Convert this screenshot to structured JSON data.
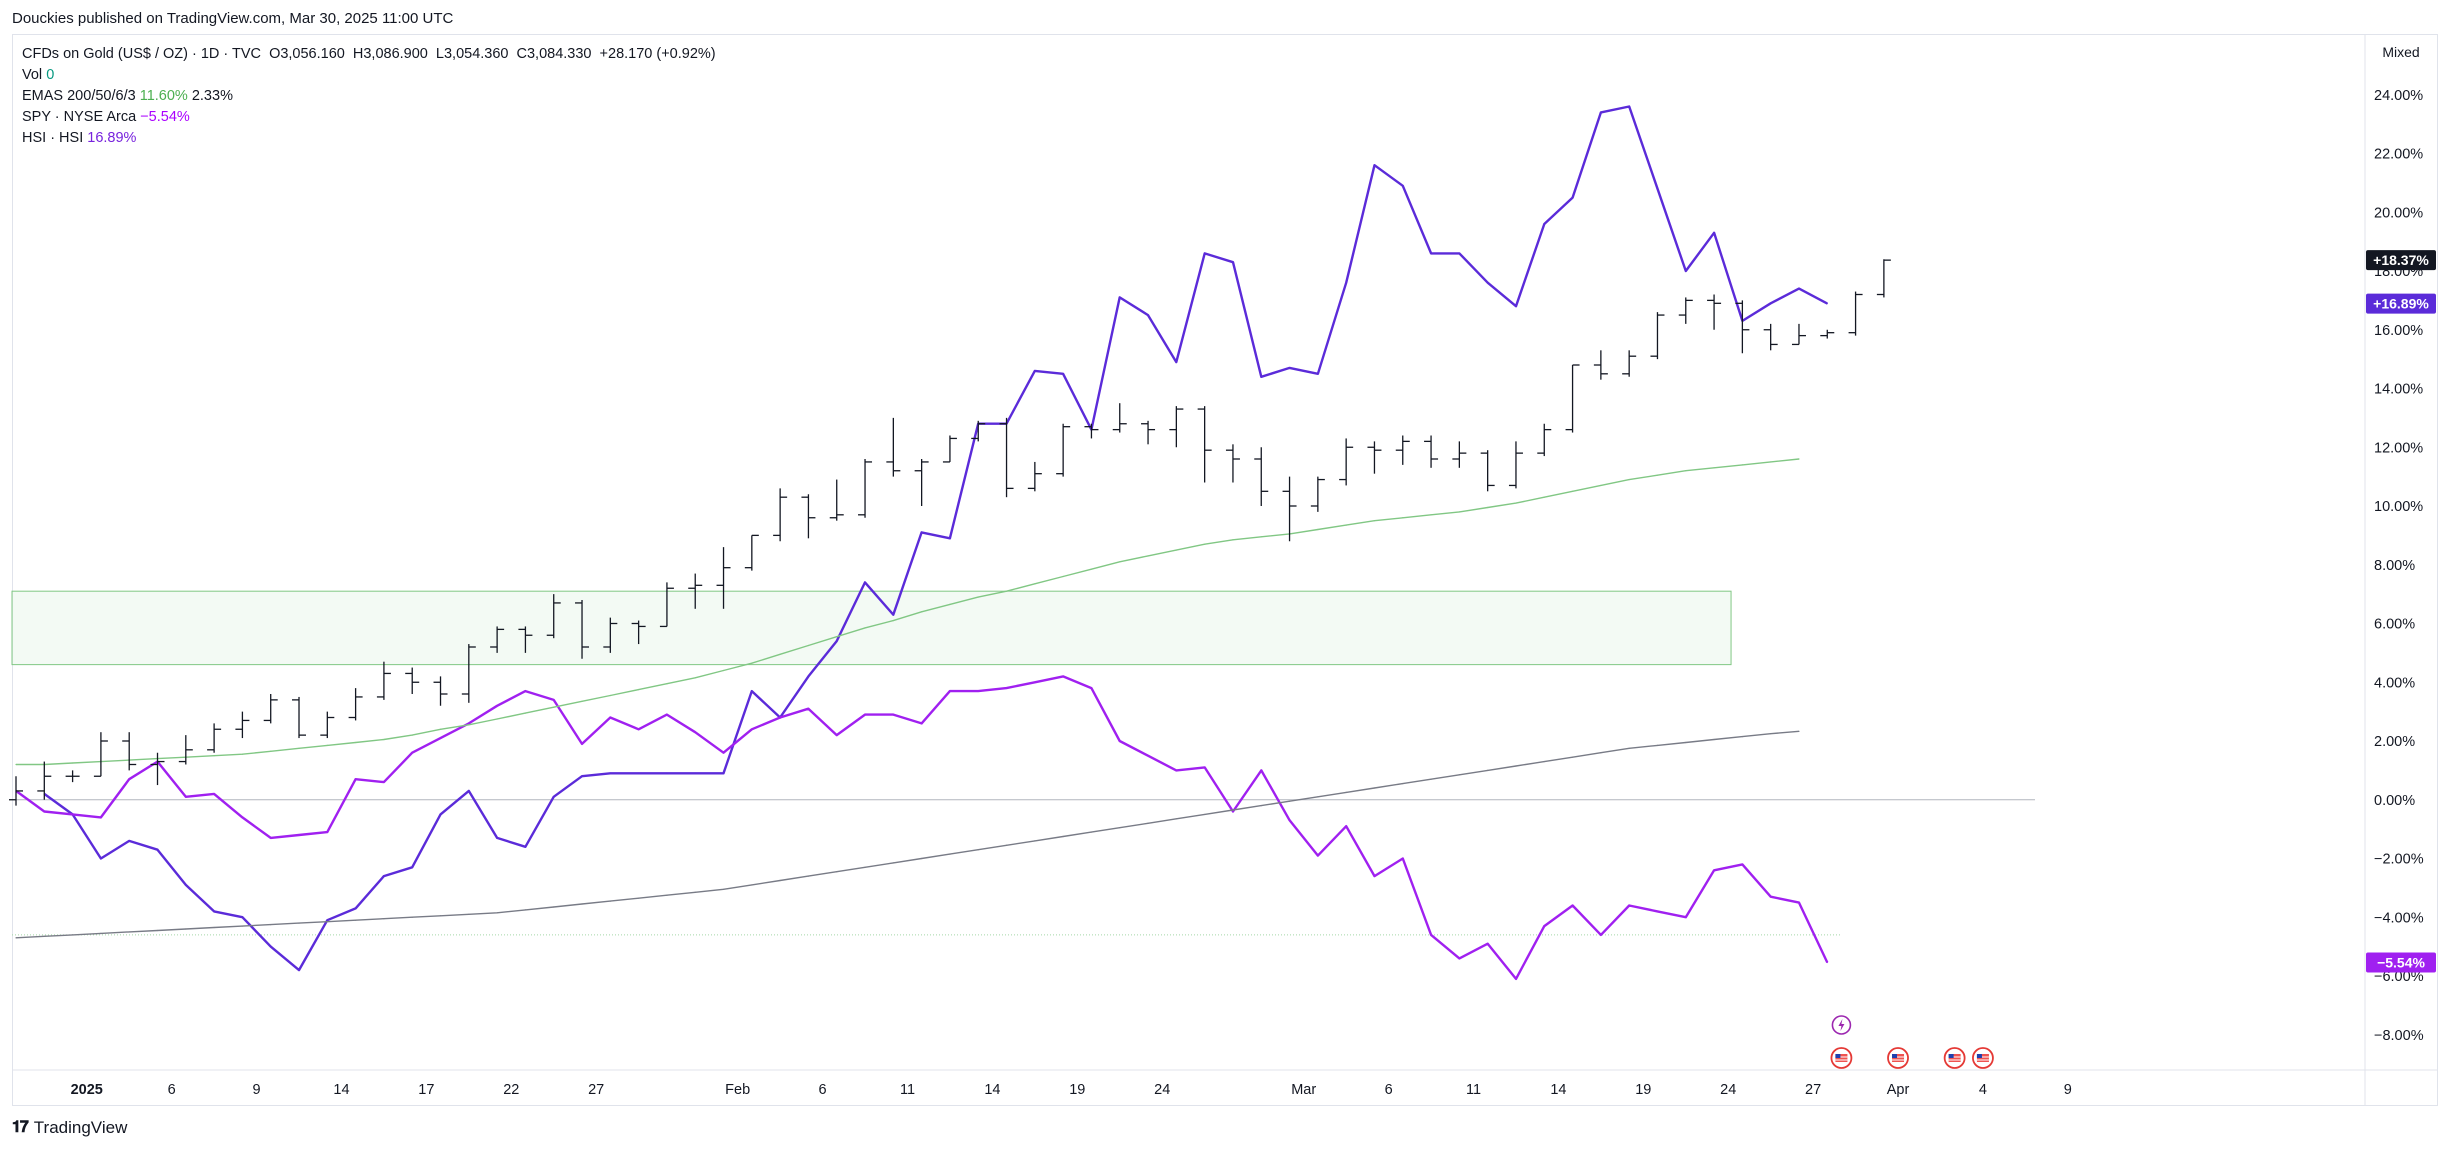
{
  "header": {
    "published": "Douckies published on TradingView.com, Mar 30, 2025 11:00 UTC"
  },
  "legend": {
    "symbol": "CFDs on Gold (US$ / OZ) · 1D · TVC",
    "open": "O3,056.160",
    "high": "H3,086.900",
    "low": "L3,054.360",
    "close": "C3,084.330",
    "change": "+28.170 (+0.92%)",
    "vol_label": "Vol",
    "vol_value": "0",
    "emas_label": "EMAS 200/50/6/3",
    "emas_v1": "11.60%",
    "emas_v2": "2.33%",
    "spy_label": "SPY · NYSE Arca",
    "spy_value": "−5.54%",
    "hsi_label": "HSI · HSI",
    "hsi_value": "16.89%"
  },
  "scale_mode": "Mixed",
  "footer": {
    "brand": "TradingView"
  },
  "colors": {
    "gold_bars": "#131722",
    "hsi": "#5b2bd9",
    "spy": "#a020f0",
    "ema_green": "#81c784",
    "ema_gray": "#787b86",
    "zone_fill": "#e8f5e9",
    "zone_border": "#81c784"
  },
  "chart_data": {
    "type": "line",
    "y_unit": "%",
    "ylim": [
      -9.2,
      26.0
    ],
    "y_ticks": [
      "24.00%",
      "22.00%",
      "20.00%",
      "18.00%",
      "16.00%",
      "14.00%",
      "12.00%",
      "10.00%",
      "8.00%",
      "6.00%",
      "4.00%",
      "2.00%",
      "0.00%",
      "−2.00%",
      "−4.00%",
      "−6.00%",
      "−8.00%"
    ],
    "y_tick_values": [
      24,
      22,
      20,
      18,
      16,
      14,
      12,
      10,
      8,
      6,
      4,
      2,
      0,
      -2,
      -4,
      -6,
      -8
    ],
    "x_range": [
      0,
      83
    ],
    "x_ticks": [
      {
        "i": 2.5,
        "label": "2025",
        "bold": true
      },
      {
        "i": 5.5,
        "label": "6"
      },
      {
        "i": 8.5,
        "label": "9"
      },
      {
        "i": 11.5,
        "label": "14"
      },
      {
        "i": 14.5,
        "label": "17"
      },
      {
        "i": 17.5,
        "label": "22"
      },
      {
        "i": 20.5,
        "label": "27"
      },
      {
        "i": 25.5,
        "label": "Feb"
      },
      {
        "i": 28.5,
        "label": "6"
      },
      {
        "i": 31.5,
        "label": "11"
      },
      {
        "i": 34.5,
        "label": "14"
      },
      {
        "i": 37.5,
        "label": "19"
      },
      {
        "i": 40.5,
        "label": "24"
      },
      {
        "i": 45.5,
        "label": "Mar"
      },
      {
        "i": 48.5,
        "label": "6"
      },
      {
        "i": 51.5,
        "label": "11"
      },
      {
        "i": 54.5,
        "label": "14"
      },
      {
        "i": 57.5,
        "label": "19"
      },
      {
        "i": 60.5,
        "label": "24"
      },
      {
        "i": 63.5,
        "label": "27"
      },
      {
        "i": 66.5,
        "label": "Apr"
      },
      {
        "i": 69.5,
        "label": "4"
      },
      {
        "i": 72.5,
        "label": "9"
      }
    ],
    "series": [
      {
        "kind": "ohlc-bars",
        "start_index": 0,
        "bars": [
          [
            0.0,
            0.8,
            -0.2,
            0.3
          ],
          [
            0.3,
            1.3,
            0.0,
            0.8
          ],
          [
            0.8,
            1.0,
            0.6,
            0.8
          ],
          [
            0.8,
            2.3,
            0.8,
            2.0
          ],
          [
            2.0,
            2.3,
            1.0,
            1.2
          ],
          [
            1.2,
            1.6,
            0.5,
            1.3
          ],
          [
            1.3,
            2.2,
            1.2,
            1.7
          ],
          [
            1.7,
            2.6,
            1.6,
            2.4
          ],
          [
            2.4,
            3.0,
            2.1,
            2.7
          ],
          [
            2.7,
            3.6,
            2.6,
            3.4
          ],
          [
            3.4,
            3.5,
            2.1,
            2.2
          ],
          [
            2.2,
            3.0,
            2.1,
            2.8
          ],
          [
            2.8,
            3.8,
            2.7,
            3.5
          ],
          [
            3.5,
            4.7,
            3.4,
            4.3
          ],
          [
            4.3,
            4.5,
            3.6,
            4.0
          ],
          [
            4.0,
            4.2,
            3.2,
            3.6
          ],
          [
            3.6,
            5.3,
            3.3,
            5.2
          ],
          [
            5.2,
            5.9,
            5.0,
            5.8
          ],
          [
            5.8,
            5.9,
            5.0,
            5.6
          ],
          [
            5.6,
            7.0,
            5.5,
            6.7
          ],
          [
            6.7,
            6.8,
            4.8,
            5.2
          ],
          [
            5.2,
            6.2,
            5.0,
            6.0
          ],
          [
            6.0,
            6.1,
            5.3,
            5.9
          ],
          [
            5.9,
            7.4,
            5.9,
            7.2
          ],
          [
            7.2,
            7.7,
            6.5,
            7.3
          ],
          [
            7.3,
            8.6,
            6.5,
            7.9
          ],
          [
            7.9,
            9.0,
            7.8,
            9.0
          ],
          [
            9.0,
            10.6,
            8.8,
            10.3
          ],
          [
            10.3,
            10.4,
            8.9,
            9.6
          ],
          [
            9.6,
            10.9,
            9.5,
            9.7
          ],
          [
            9.7,
            11.6,
            9.6,
            11.5
          ],
          [
            11.5,
            13.0,
            11.0,
            11.2
          ],
          [
            11.2,
            11.6,
            10.0,
            11.5
          ],
          [
            11.5,
            12.4,
            11.5,
            12.3
          ],
          [
            12.3,
            12.9,
            12.2,
            12.8
          ],
          [
            12.8,
            13.0,
            10.3,
            10.6
          ],
          [
            10.6,
            11.5,
            10.5,
            11.1
          ],
          [
            11.1,
            12.8,
            11.0,
            12.7
          ],
          [
            12.7,
            12.8,
            12.3,
            12.6
          ],
          [
            12.6,
            13.5,
            12.5,
            12.8
          ],
          [
            12.8,
            12.9,
            12.1,
            12.6
          ],
          [
            12.6,
            13.4,
            12.0,
            13.3
          ],
          [
            13.3,
            13.4,
            10.8,
            11.9
          ],
          [
            11.9,
            12.1,
            10.8,
            11.6
          ],
          [
            11.6,
            12.0,
            10.0,
            10.5
          ],
          [
            10.5,
            11.0,
            8.8,
            10.0
          ],
          [
            10.0,
            11.0,
            9.8,
            10.9
          ],
          [
            10.9,
            12.3,
            10.7,
            12.0
          ],
          [
            12.0,
            12.2,
            11.1,
            11.9
          ],
          [
            11.9,
            12.4,
            11.4,
            12.2
          ],
          [
            12.2,
            12.4,
            11.3,
            11.6
          ],
          [
            11.6,
            12.2,
            11.3,
            11.8
          ],
          [
            11.8,
            11.9,
            10.5,
            10.7
          ],
          [
            10.7,
            12.2,
            10.6,
            11.8
          ],
          [
            11.8,
            12.8,
            11.7,
            12.6
          ],
          [
            12.6,
            14.8,
            12.5,
            14.8
          ],
          [
            14.8,
            15.3,
            14.3,
            14.5
          ],
          [
            14.5,
            15.3,
            14.4,
            15.1
          ],
          [
            15.1,
            16.6,
            15.0,
            16.5
          ],
          [
            16.5,
            17.1,
            16.2,
            17.0
          ],
          [
            17.0,
            17.2,
            16.0,
            16.9
          ],
          [
            16.9,
            17.0,
            15.2,
            16.0
          ],
          [
            16.0,
            16.2,
            15.3,
            15.5
          ],
          [
            15.5,
            16.2,
            15.5,
            15.8
          ],
          [
            15.8,
            16.0,
            15.7,
            15.9
          ],
          [
            15.9,
            17.3,
            15.8,
            17.2
          ],
          [
            17.2,
            18.4,
            17.1,
            18.37
          ]
        ],
        "last_value": "+18.37%"
      },
      {
        "name": "HSI",
        "kind": "line",
        "start_index": 1,
        "values": [
          0.2,
          -0.5,
          -2.0,
          -1.4,
          -1.7,
          -2.9,
          -3.8,
          -4.0,
          -5.0,
          -5.8,
          -4.1,
          -3.7,
          -2.6,
          -2.3,
          -0.5,
          0.3,
          -1.3,
          -1.6,
          0.1,
          0.8,
          0.9,
          0.9,
          0.9,
          0.9,
          0.9,
          3.7,
          2.8,
          4.2,
          5.4,
          7.4,
          6.3,
          9.1,
          8.9,
          12.8,
          12.8,
          14.6,
          14.5,
          12.6,
          17.1,
          16.5,
          14.9,
          18.6,
          18.3,
          14.4,
          14.7,
          14.5,
          17.6,
          21.6,
          20.9,
          18.6,
          18.6,
          17.6,
          16.8,
          19.6,
          20.5,
          23.4,
          23.6,
          20.8,
          18.0,
          19.3,
          16.3,
          16.9,
          17.4,
          16.89
        ],
        "last_value": "+16.89%"
      },
      {
        "name": "SPY",
        "kind": "line",
        "start_index": 0,
        "values": [
          0.3,
          -0.4,
          -0.5,
          -0.6,
          0.7,
          1.3,
          0.1,
          0.2,
          -0.6,
          -1.3,
          -1.2,
          -1.1,
          0.7,
          0.6,
          1.6,
          2.1,
          2.6,
          3.2,
          3.7,
          3.4,
          1.9,
          2.8,
          2.4,
          2.9,
          2.3,
          1.6,
          2.4,
          2.8,
          3.1,
          2.2,
          2.9,
          2.9,
          2.6,
          3.7,
          3.7,
          3.8,
          4.0,
          4.2,
          3.8,
          2.0,
          1.5,
          1.0,
          1.1,
          -0.4,
          1.0,
          -0.7,
          -1.9,
          -0.9,
          -2.6,
          -2.0,
          -4.6,
          -5.4,
          -4.9,
          -6.1,
          -4.3,
          -3.6,
          -4.6,
          -3.6,
          -3.8,
          -4.0,
          -2.4,
          -2.2,
          -3.3,
          -3.5,
          -5.54
        ],
        "last_value": "−5.54%"
      },
      {
        "name": "EMA 50",
        "kind": "line",
        "start_index": 0,
        "values": [
          1.2,
          1.2,
          1.25,
          1.3,
          1.35,
          1.4,
          1.45,
          1.5,
          1.55,
          1.65,
          1.75,
          1.85,
          1.95,
          2.05,
          2.2,
          2.4,
          2.55,
          2.75,
          2.95,
          3.15,
          3.35,
          3.55,
          3.75,
          3.95,
          4.15,
          4.4,
          4.65,
          4.95,
          5.25,
          5.55,
          5.85,
          6.1,
          6.4,
          6.65,
          6.9,
          7.1,
          7.35,
          7.6,
          7.85,
          8.1,
          8.3,
          8.5,
          8.7,
          8.85,
          8.95,
          9.05,
          9.2,
          9.35,
          9.5,
          9.6,
          9.7,
          9.8,
          9.95,
          10.1,
          10.3,
          10.5,
          10.7,
          10.9,
          11.05,
          11.2,
          11.3,
          11.4,
          11.5,
          11.6
        ]
      },
      {
        "name": "EMA 200",
        "kind": "line",
        "start_index": 0,
        "values": [
          -4.7,
          -4.65,
          -4.6,
          -4.55,
          -4.5,
          -4.45,
          -4.4,
          -4.35,
          -4.3,
          -4.25,
          -4.2,
          -4.15,
          -4.1,
          -4.05,
          -4.0,
          -3.95,
          -3.9,
          -3.85,
          -3.75,
          -3.65,
          -3.55,
          -3.45,
          -3.35,
          -3.25,
          -3.15,
          -3.05,
          -2.9,
          -2.75,
          -2.6,
          -2.45,
          -2.3,
          -2.15,
          -2.0,
          -1.85,
          -1.7,
          -1.55,
          -1.4,
          -1.25,
          -1.1,
          -0.95,
          -0.8,
          -0.65,
          -0.5,
          -0.35,
          -0.2,
          -0.05,
          0.1,
          0.25,
          0.4,
          0.55,
          0.7,
          0.85,
          1.0,
          1.15,
          1.3,
          1.45,
          1.6,
          1.75,
          1.85,
          1.95,
          2.05,
          2.15,
          2.25,
          2.33
        ]
      }
    ],
    "zone": {
      "x0": 0,
      "x1": 60.6,
      "y_top": 7.1,
      "y_bottom": 4.6
    },
    "ref_line": {
      "y": -4.6,
      "x1": 64.5
    }
  }
}
